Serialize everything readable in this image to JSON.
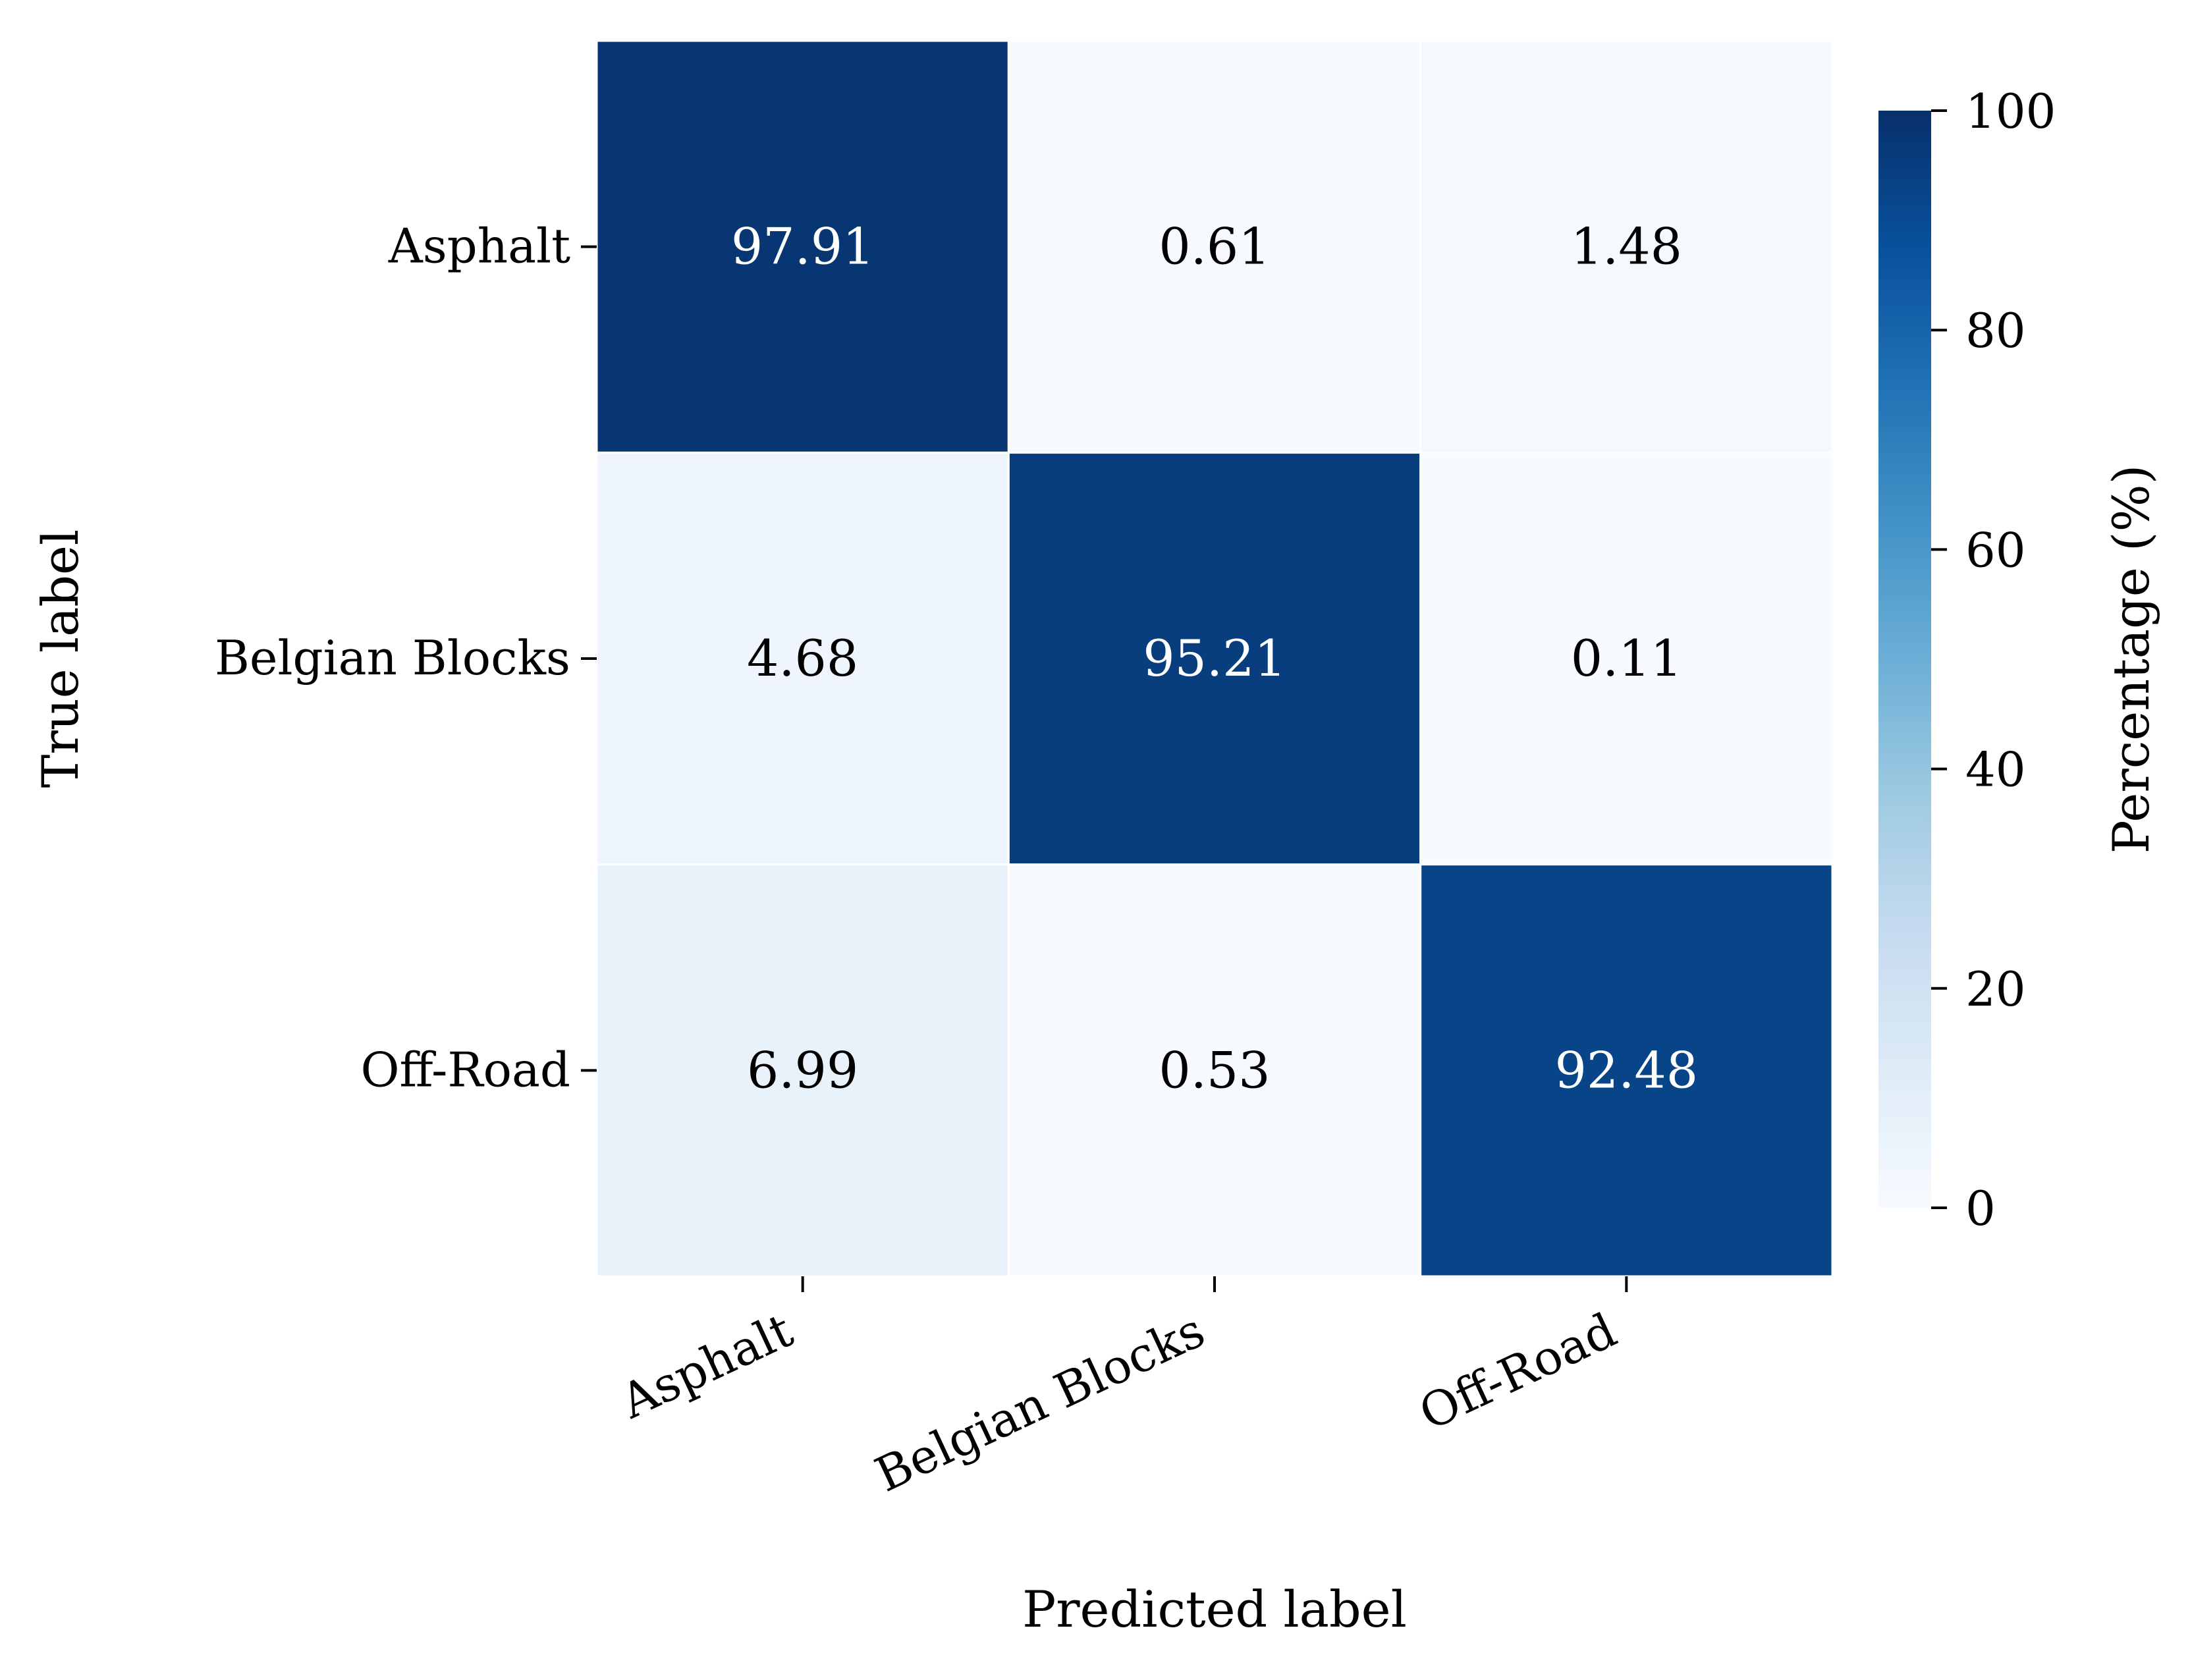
{
  "chart_data": {
    "type": "heatmap",
    "xlabel": "Predicted label",
    "ylabel": "True label",
    "x_categories": [
      "Asphalt",
      "Belgian Blocks",
      "Off-Road"
    ],
    "y_categories": [
      "Asphalt",
      "Belgian Blocks",
      "Off-Road"
    ],
    "values": [
      [
        97.91,
        0.61,
        1.48
      ],
      [
        4.68,
        95.21,
        0.11
      ],
      [
        6.99,
        0.53,
        92.48
      ]
    ],
    "value_labels": [
      [
        "97.91",
        "0.61",
        "1.48"
      ],
      [
        "4.68",
        "95.21",
        "0.11"
      ],
      [
        "6.99",
        "0.53",
        "92.48"
      ]
    ],
    "colorbar": {
      "label": "Percentage (%)",
      "range": [
        0,
        100
      ],
      "ticks": [
        0,
        20,
        40,
        60,
        80,
        100
      ],
      "tick_labels": [
        "0",
        "20",
        "40",
        "60",
        "80",
        "100"
      ],
      "colormap": "Blues"
    },
    "grid": false,
    "legend": "colorbar right"
  }
}
